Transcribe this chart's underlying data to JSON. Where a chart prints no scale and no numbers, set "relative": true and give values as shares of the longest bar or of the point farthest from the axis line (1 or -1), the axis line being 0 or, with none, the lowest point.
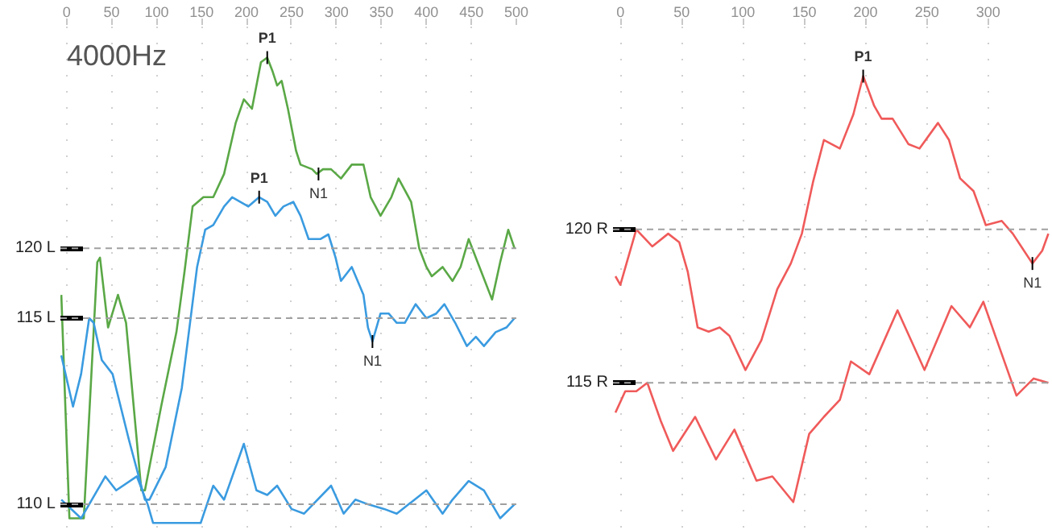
{
  "chart_data": [
    {
      "type": "line",
      "title": "4000Hz",
      "relative": true,
      "xlim": [
        -7,
        500
      ],
      "xticks": [
        0,
        50,
        100,
        150,
        200,
        250,
        300,
        350,
        400,
        450,
        500
      ],
      "grid": "x",
      "marker": "none",
      "line_style": "solid",
      "series": [
        {
          "color": "#5aa846",
          "x": [
            -6,
            3,
            19,
            34,
            37,
            46,
            57,
            66,
            83,
            87,
            105,
            122,
            131,
            140,
            152,
            163,
            175,
            188,
            197,
            206,
            216,
            223,
            229,
            234,
            239,
            246,
            255,
            260,
            273,
            278,
            285,
            294,
            305,
            317,
            330,
            338,
            349,
            361,
            369,
            383,
            392,
            400,
            406,
            418,
            429,
            438,
            447,
            459,
            473,
            482,
            491,
            498
          ],
          "values": [
            0.49,
            0.01,
            0.01,
            0.56,
            0.57,
            0.42,
            0.49,
            0.43,
            0.07,
            0.07,
            0.25,
            0.41,
            0.54,
            0.68,
            0.7,
            0.7,
            0.75,
            0.86,
            0.91,
            0.89,
            0.99,
            1.0,
            0.97,
            0.94,
            0.95,
            0.89,
            0.8,
            0.77,
            0.76,
            0.75,
            0.76,
            0.76,
            0.74,
            0.77,
            0.77,
            0.7,
            0.66,
            0.7,
            0.74,
            0.69,
            0.59,
            0.55,
            0.53,
            0.55,
            0.52,
            0.55,
            0.61,
            0.55,
            0.48,
            0.56,
            0.63,
            0.59
          ]
        },
        {
          "color": "#3a9be0",
          "x": [
            -6,
            7,
            16,
            25,
            30,
            39,
            51,
            69,
            87,
            92,
            110,
            128,
            145,
            154,
            163,
            175,
            184,
            193,
            202,
            214,
            223,
            232,
            241,
            252,
            260,
            269,
            282,
            291,
            299,
            305,
            317,
            330,
            335,
            340,
            349,
            358,
            367,
            376,
            388,
            400,
            411,
            420,
            432,
            445,
            455,
            464,
            477,
            489,
            498
          ],
          "values": [
            0.36,
            0.25,
            0.32,
            0.44,
            0.43,
            0.35,
            0.32,
            0.18,
            0.05,
            0.05,
            0.12,
            0.29,
            0.55,
            0.63,
            0.64,
            0.68,
            0.7,
            0.69,
            0.68,
            0.7,
            0.69,
            0.66,
            0.68,
            0.69,
            0.66,
            0.61,
            0.61,
            0.62,
            0.57,
            0.52,
            0.55,
            0.49,
            0.42,
            0.39,
            0.45,
            0.45,
            0.43,
            0.43,
            0.47,
            0.44,
            0.45,
            0.47,
            0.43,
            0.38,
            0.4,
            0.38,
            0.41,
            0.42,
            0.44
          ]
        },
        {
          "color": "#3a9be0",
          "x": [
            -6,
            16,
            25,
            43,
            55,
            78,
            90,
            96,
            149,
            163,
            175,
            197,
            211,
            223,
            234,
            250,
            264,
            294,
            308,
            321,
            335,
            353,
            367,
            400,
            418,
            429,
            447,
            464,
            482,
            498
          ],
          "values": [
            0.05,
            0.01,
            0.04,
            0.1,
            0.07,
            0.1,
            0.04,
            0.0,
            0.0,
            0.08,
            0.05,
            0.17,
            0.07,
            0.06,
            0.08,
            0.03,
            0.02,
            0.08,
            0.02,
            0.05,
            0.04,
            0.03,
            0.02,
            0.07,
            0.02,
            0.05,
            0.09,
            0.07,
            0.01,
            0.04
          ]
        }
      ],
      "ref_lines": [
        {
          "axis": "y",
          "value": 0.59,
          "label": "120 L",
          "color": "#a0a0a0",
          "line_style": "dashed"
        },
        {
          "axis": "y",
          "value": 0.44,
          "label": "115 L",
          "color": "#a0a0a0",
          "line_style": "dashed"
        },
        {
          "axis": "y",
          "value": 0.04,
          "label": "110 L",
          "color": "#a0a0a0",
          "line_style": "dashed"
        }
      ],
      "annotations": [
        {
          "text": "P1",
          "x": 223,
          "y": 1.0
        },
        {
          "text": "N1",
          "x": 280,
          "y": 0.75
        },
        {
          "text": "P1",
          "x": 214,
          "y": 0.7
        },
        {
          "text": "N1",
          "x": 340,
          "y": 0.39
        }
      ]
    },
    {
      "type": "line",
      "relative": true,
      "xlim": [
        -6,
        350
      ],
      "xticks": [
        0,
        50,
        100,
        150,
        200,
        250,
        300
      ],
      "grid": "x",
      "marker": "none",
      "line_style": "solid",
      "series": [
        {
          "color": "#f05a5a",
          "x": [
            -4,
            0,
            5,
            13,
            26,
            39,
            48,
            55,
            63,
            72,
            81,
            89,
            102,
            115,
            128,
            139,
            148,
            157,
            166,
            179,
            190,
            198,
            207,
            213,
            222,
            235,
            244,
            259,
            268,
            277,
            288,
            298,
            311,
            320,
            336,
            344,
            349
          ],
          "values": [
            0.53,
            0.51,
            0.56,
            0.64,
            0.6,
            0.63,
            0.61,
            0.54,
            0.41,
            0.4,
            0.41,
            0.39,
            0.31,
            0.38,
            0.5,
            0.56,
            0.63,
            0.75,
            0.85,
            0.83,
            0.91,
            1.0,
            0.93,
            0.9,
            0.9,
            0.84,
            0.83,
            0.89,
            0.85,
            0.76,
            0.73,
            0.65,
            0.66,
            0.63,
            0.56,
            0.59,
            0.63
          ]
        },
        {
          "color": "#f05a5a",
          "x": [
            -4,
            4,
            13,
            22,
            33,
            43,
            61,
            78,
            93,
            111,
            124,
            141,
            154,
            166,
            179,
            188,
            203,
            226,
            248,
            270,
            285,
            296,
            307,
            323,
            337,
            349
          ],
          "values": [
            0.21,
            0.26,
            0.26,
            0.28,
            0.19,
            0.12,
            0.2,
            0.1,
            0.17,
            0.05,
            0.06,
            0.0,
            0.16,
            0.2,
            0.24,
            0.33,
            0.3,
            0.45,
            0.31,
            0.46,
            0.41,
            0.47,
            0.38,
            0.25,
            0.29,
            0.28
          ]
        }
      ],
      "ref_lines": [
        {
          "axis": "y",
          "value": 0.64,
          "label": "120 R",
          "color": "#a0a0a0",
          "line_style": "dashed"
        },
        {
          "axis": "y",
          "value": 0.28,
          "label": "115 R",
          "color": "#a0a0a0",
          "line_style": "dashed"
        }
      ],
      "annotations": [
        {
          "text": "P1",
          "x": 198,
          "y": 1.0
        },
        {
          "text": "N1",
          "x": 336,
          "y": 0.56
        }
      ]
    }
  ]
}
